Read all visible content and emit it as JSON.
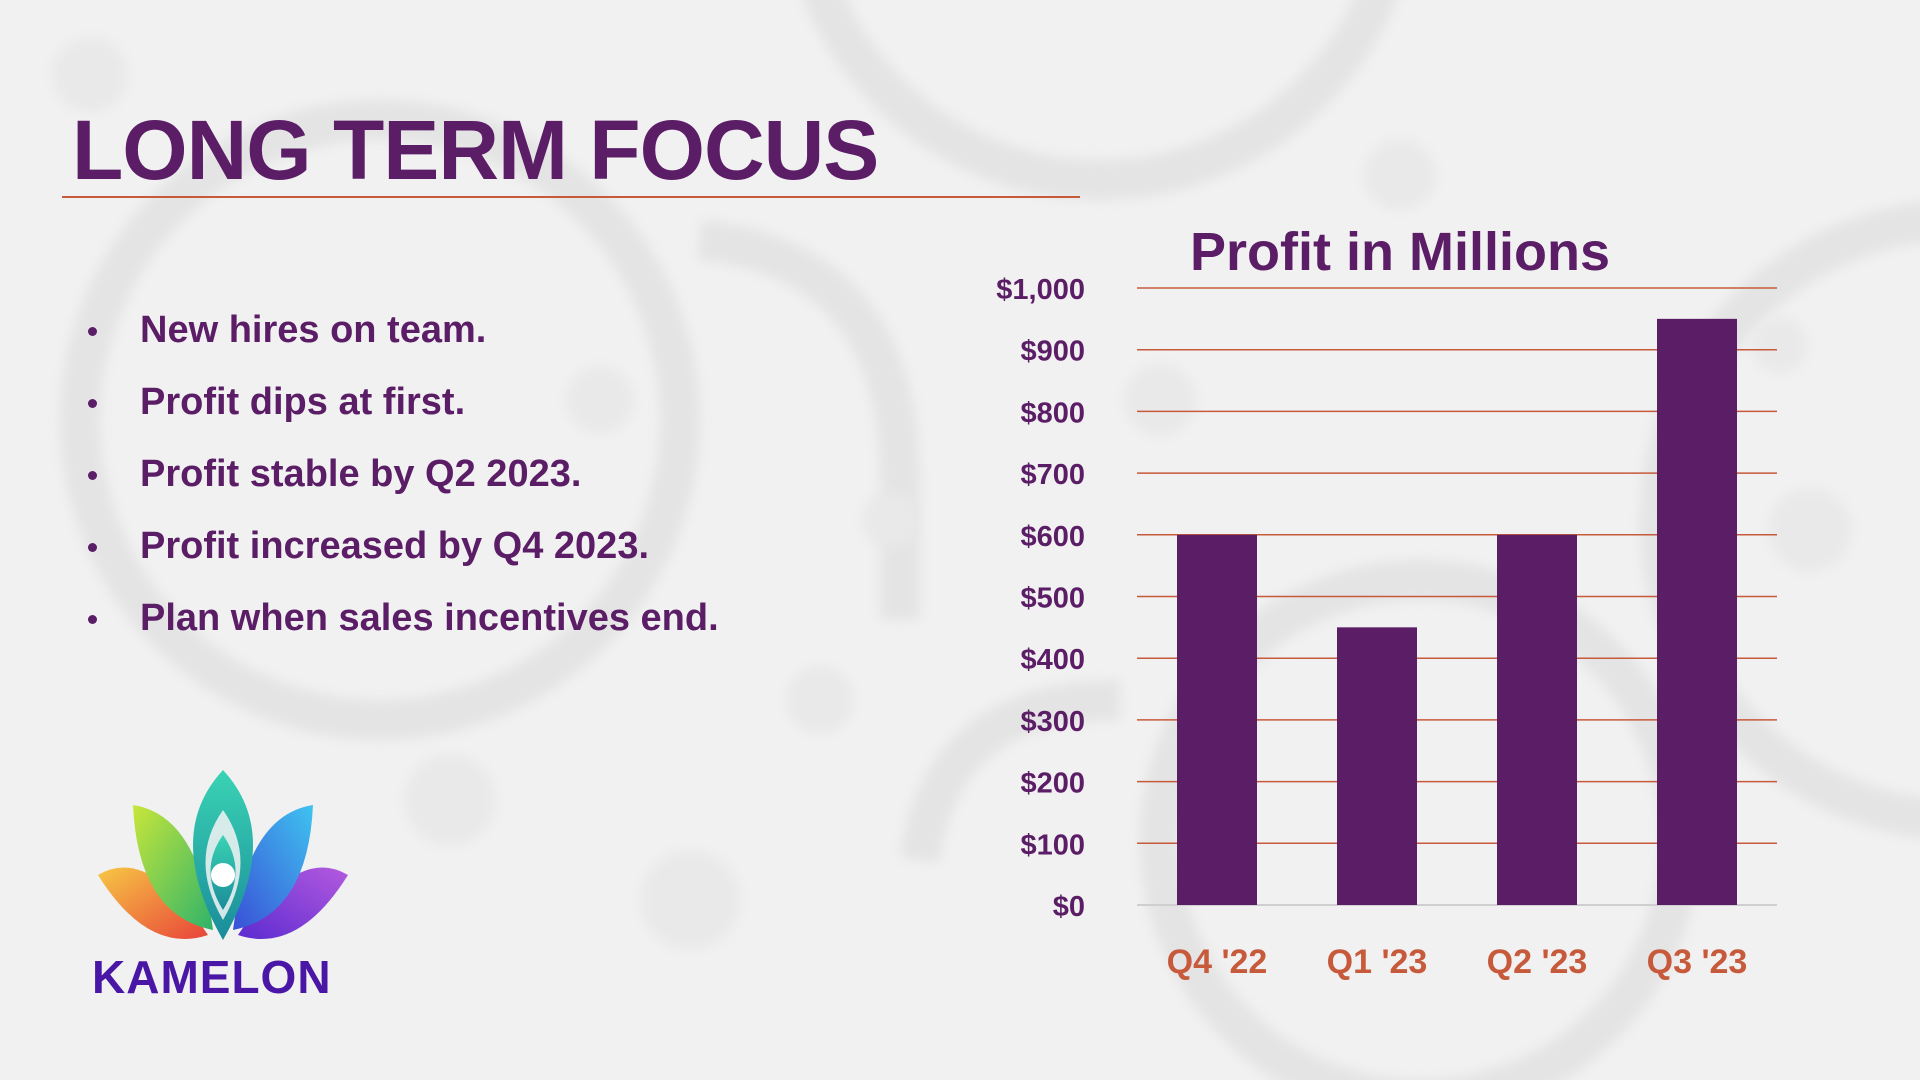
{
  "slide": {
    "title": "LONG TERM FOCUS",
    "bullets": [
      "New hires on team.",
      "Profit dips at first.",
      "Profit stable by Q2 2023.",
      "Profit increased by Q4 2023.",
      "Plan when sales incentives end."
    ],
    "logo_text": "KAMELON"
  },
  "colors": {
    "primary": "#5a1d66",
    "accent": "#c75a3a",
    "logo_text": "#4a16a6",
    "background": "#f1f1f1"
  },
  "chart_data": {
    "type": "bar",
    "title": "Profit in Millions",
    "categories": [
      "Q4 '22",
      "Q1 '23",
      "Q2 '23",
      "Q3 '23"
    ],
    "values": [
      600,
      450,
      600,
      950
    ],
    "ylim": [
      0,
      1000
    ],
    "y_ticks": [
      0,
      100,
      200,
      300,
      400,
      500,
      600,
      700,
      800,
      900,
      1000
    ],
    "y_tick_labels": [
      "$0",
      "$100",
      "$200",
      "$300",
      "$400",
      "$500",
      "$600",
      "$700",
      "$800",
      "$900",
      "$1,000"
    ],
    "xlabel": "",
    "ylabel": "",
    "grid": true,
    "legend": "none"
  }
}
